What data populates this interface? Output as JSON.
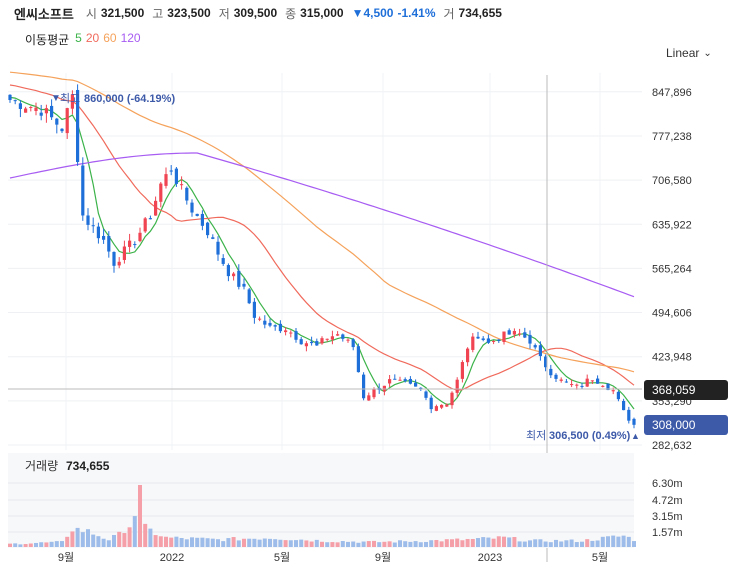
{
  "header": {
    "name": "엔씨소프트",
    "open_label": "시",
    "open": "321,500",
    "high_label": "고",
    "high": "323,500",
    "low_label": "저",
    "low": "309,500",
    "close_label": "종",
    "close": "315,000",
    "change": "▼4,500",
    "change_pct": "-1.41%",
    "volume_label": "거",
    "volume": "734,655"
  },
  "ma_legend": {
    "title": "이동평균",
    "p5": "5",
    "p20": "20",
    "p60": "60",
    "p120": "120",
    "colors": {
      "p5": "#3cb34a",
      "p20": "#f06a5c",
      "p60": "#f5a25b",
      "p120": "#a75cf2"
    }
  },
  "scale_selector": {
    "label": "Linear"
  },
  "annotations": {
    "max_label": "최고",
    "max_value": "860,000 (-64.19%)",
    "min_label": "최저",
    "min_value": "306,500 (0.49%)",
    "crosshair_value": "368,059",
    "last_price_tag": "308,000"
  },
  "volume_legend": {
    "label": "거래량",
    "value": "734,655"
  },
  "colors": {
    "up": "#f04452",
    "down": "#1f6fd9",
    "crosshair_tag": "#222222",
    "price_tag": "#3d5aa9"
  },
  "chart_data": {
    "type": "candlestick",
    "y_ticks": [
      "847,896",
      "777,238",
      "706,580",
      "635,922",
      "565,264",
      "494,606",
      "423,948",
      "353,290",
      "282,632"
    ],
    "x_ticks": [
      "9월",
      "2022",
      "5월",
      "9월",
      "2023",
      "5월"
    ],
    "volume_ticks": [
      "6.30m",
      "4.72m",
      "3.15m",
      "1.57m"
    ],
    "ylim": [
      282632,
      870000
    ],
    "anchors": [
      [
        0,
        835000
      ],
      [
        6,
        820000
      ],
      [
        10,
        790000
      ],
      [
        12,
        840000
      ],
      [
        14,
        650000
      ],
      [
        18,
        610000
      ],
      [
        20,
        575000
      ],
      [
        24,
        610000
      ],
      [
        27,
        650000
      ],
      [
        29,
        700000
      ],
      [
        31,
        725000
      ],
      [
        33,
        690000
      ],
      [
        35,
        660000
      ],
      [
        38,
        625000
      ],
      [
        40,
        590000
      ],
      [
        42,
        560000
      ],
      [
        45,
        530000
      ],
      [
        47,
        490000
      ],
      [
        50,
        470000
      ],
      [
        53,
        470000
      ],
      [
        56,
        450000
      ],
      [
        59,
        440000
      ],
      [
        61,
        455000
      ],
      [
        63,
        460000
      ],
      [
        66,
        440000
      ],
      [
        68,
        360000
      ],
      [
        71,
        375000
      ],
      [
        73,
        385000
      ],
      [
        76,
        380000
      ],
      [
        79,
        370000
      ],
      [
        81,
        345000
      ],
      [
        84,
        350000
      ],
      [
        86,
        385000
      ],
      [
        88,
        440000
      ],
      [
        90,
        460000
      ],
      [
        92,
        445000
      ],
      [
        94,
        455000
      ],
      [
        96,
        460000
      ],
      [
        98,
        460000
      ],
      [
        100,
        450000
      ],
      [
        102,
        420000
      ],
      [
        104,
        400000
      ],
      [
        106,
        385000
      ],
      [
        109,
        375000
      ],
      [
        112,
        390000
      ],
      [
        114,
        382000
      ],
      [
        116,
        370000
      ],
      [
        118,
        335000
      ],
      [
        120,
        315000
      ]
    ],
    "volume_profile": [
      [
        0,
        0.05
      ],
      [
        10,
        0.08
      ],
      [
        12,
        0.3
      ],
      [
        15,
        0.25
      ],
      [
        19,
        0.12
      ],
      [
        21,
        0.2
      ],
      [
        22,
        0.3
      ],
      [
        23,
        0.35
      ],
      [
        24,
        0.55
      ],
      [
        25,
        1.0
      ],
      [
        26,
        0.3
      ],
      [
        30,
        0.15
      ],
      [
        40,
        0.12
      ],
      [
        50,
        0.15
      ],
      [
        60,
        0.1
      ],
      [
        70,
        0.08
      ],
      [
        80,
        0.1
      ],
      [
        88,
        0.12
      ],
      [
        95,
        0.15
      ],
      [
        100,
        0.1
      ],
      [
        110,
        0.1
      ],
      [
        118,
        0.18
      ],
      [
        120,
        0.12
      ]
    ]
  }
}
